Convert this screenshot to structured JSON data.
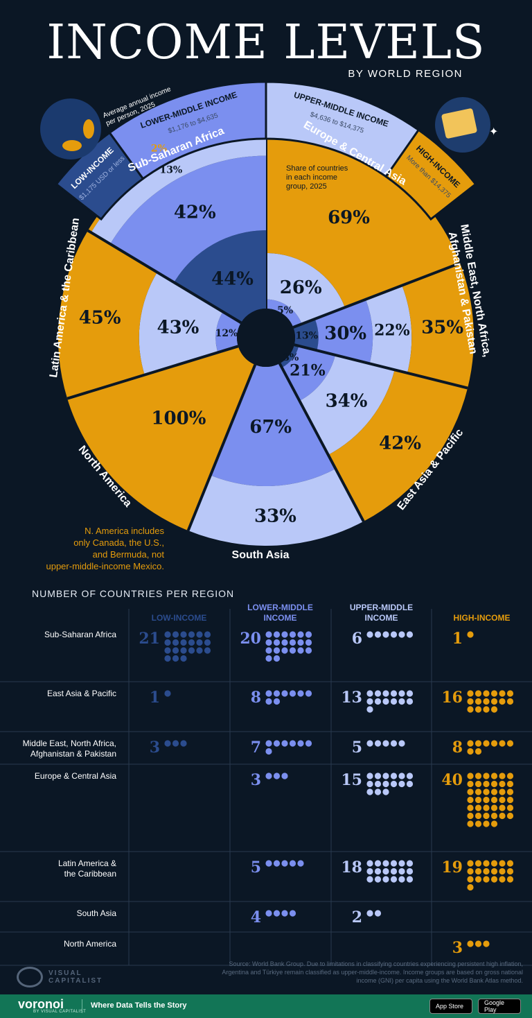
{
  "title": "INCOME LEVELS",
  "subtitle": "BY WORLD REGION",
  "legend": {
    "note": [
      "Average annual income",
      "per person, 2025"
    ],
    "share_note": [
      "Share of countries",
      "in each income",
      "group, 2025"
    ],
    "groups": [
      {
        "label": "LOW-INCOME",
        "range": "$1,175 USD or less"
      },
      {
        "label": "LOWER-MIDDLE INCOME",
        "range": "$1,176 to $4,635"
      },
      {
        "label": "UPPER-MIDDLE INCOME",
        "range": "$4,636 to $14,375"
      },
      {
        "label": "HIGH-INCOME",
        "range": "More than $14,375"
      }
    ]
  },
  "na_note": [
    "N. America includes",
    "only Canada, the U.S.,",
    "and Bermuda, not",
    "upper-middle-income Mexico."
  ],
  "grid": {
    "heading": "NUMBER OF COUNTRIES PER REGION",
    "columns": [
      [
        "LOW-INCOME"
      ],
      [
        "LOWER-MIDDLE",
        "INCOME"
      ],
      [
        "UPPER-MIDDLE",
        "INCOME"
      ],
      [
        "HIGH-INCOME"
      ]
    ],
    "row_labels": [
      [
        "Sub-Saharan Africa"
      ],
      [
        "East Asia & Pacific"
      ],
      [
        "Middle East, North Africa,",
        "Afghanistan & Pakistan"
      ],
      [
        "Europe & Central Asia"
      ],
      [
        "Latin America &",
        "the Caribbean"
      ],
      [
        "South Asia"
      ],
      [
        "North America"
      ]
    ]
  },
  "source": "Source: World Bank Group. Due to limitations in classifying countries experiencing persistent high inflation, Argentina and Türkiye remain classified as upper-middle-income. Income groups are based on gross national income (GNI) per capita using the World Bank Atlas method.",
  "footer": {
    "brand": "voronoi",
    "by": "BY VISUAL CAPITALIST",
    "tagline": "Where Data Tells the Story",
    "app_store": "App Store",
    "google_play": "Google Play",
    "publisher": [
      "VISUAL",
      "CAPITALIST"
    ]
  },
  "colors": {
    "background": "#0b1725",
    "low": "#2b4c8e",
    "lower_middle": "#7b8fef",
    "upper_middle": "#b9c8f8",
    "high": "#e59c0c"
  },
  "chart_data": {
    "type": "radial-bar",
    "series_order": [
      "Low-income",
      "Lower-middle income",
      "Upper-middle income",
      "High-income"
    ],
    "regions": [
      {
        "name": "Europe & Central Asia",
        "counts": [
          0,
          3,
          15,
          40
        ],
        "shares": [
          null,
          "5%",
          "26%",
          "69%"
        ]
      },
      {
        "name": "Middle East, North Africa, Afghanistan & Pakistan",
        "counts": [
          3,
          7,
          5,
          8
        ],
        "shares": [
          "13%",
          "30%",
          "22%",
          "35%"
        ]
      },
      {
        "name": "East Asia & Pacific",
        "counts": [
          1,
          8,
          13,
          16
        ],
        "shares": [
          "3%",
          "21%",
          "34%",
          "42%"
        ]
      },
      {
        "name": "South Asia",
        "counts": [
          0,
          4,
          2,
          0
        ],
        "shares": [
          null,
          "67%",
          "33%",
          null
        ]
      },
      {
        "name": "North America",
        "counts": [
          0,
          0,
          0,
          3
        ],
        "shares": [
          null,
          null,
          null,
          "100%"
        ]
      },
      {
        "name": "Latin America & the Caribbean",
        "counts": [
          0,
          5,
          18,
          19
        ],
        "shares": [
          null,
          "12%",
          "43%",
          "45%"
        ]
      },
      {
        "name": "Sub-Saharan Africa",
        "counts": [
          21,
          20,
          6,
          1
        ],
        "shares": [
          "44%",
          "42%",
          "13%",
          "2%"
        ]
      }
    ]
  }
}
